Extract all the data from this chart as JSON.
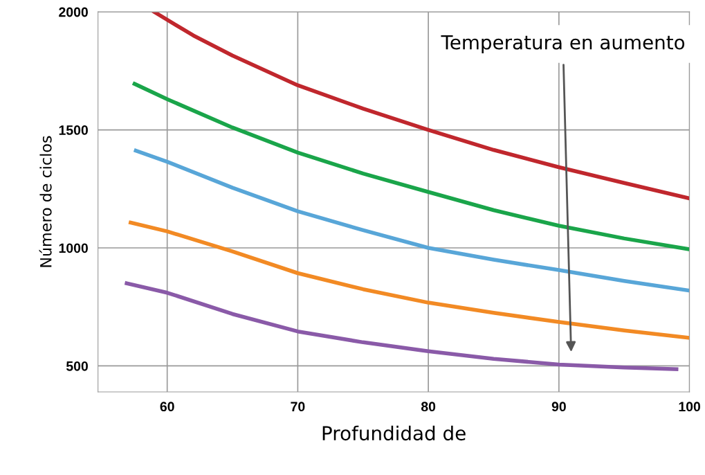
{
  "chart_data": {
    "type": "line",
    "xlabel": "Profundidad de",
    "ylabel": "Número de ciclos",
    "annotations": [
      "Temperatura en aumento"
    ],
    "series": [
      {
        "color": "#c0272d",
        "x": [
          59,
          62,
          65,
          70,
          75,
          80,
          85,
          90,
          95,
          100
        ],
        "values": [
          2000,
          1900,
          1815,
          1689,
          1590,
          1500,
          1415,
          1342,
          1275,
          1210
        ]
      },
      {
        "color": "#1aa54a",
        "x": [
          57.5,
          60,
          65,
          70,
          75,
          80,
          85,
          90,
          95,
          100
        ],
        "values": [
          1695,
          1630,
          1510,
          1404,
          1315,
          1237,
          1160,
          1094,
          1040,
          994
        ]
      },
      {
        "color": "#58a6d8",
        "x": [
          57.6,
          60,
          65,
          70,
          75,
          80,
          85,
          90,
          95,
          100
        ],
        "values": [
          1412,
          1365,
          1255,
          1155,
          1075,
          1000,
          950,
          906,
          860,
          819
        ]
      },
      {
        "color": "#f28a24",
        "x": [
          57.2,
          60,
          65,
          70,
          75,
          80,
          85,
          90,
          95,
          100
        ],
        "values": [
          1107,
          1070,
          985,
          893,
          825,
          768,
          725,
          686,
          650,
          619
        ]
      },
      {
        "color": "#8a5aa8",
        "x": [
          56.9,
          60,
          65,
          70,
          75,
          80,
          85,
          90,
          95,
          99
        ],
        "values": [
          850,
          810,
          720,
          646,
          600,
          562,
          530,
          506,
          493,
          486
        ]
      }
    ],
    "xlim": [
      54.7,
      100
    ],
    "ylim": [
      390,
      2000
    ],
    "xticks": [
      60,
      70,
      80,
      90,
      100
    ],
    "yticks": [
      500,
      1000,
      1500,
      2000
    ],
    "grid": true,
    "legend": false,
    "marker": "none",
    "line_style": "solid"
  }
}
